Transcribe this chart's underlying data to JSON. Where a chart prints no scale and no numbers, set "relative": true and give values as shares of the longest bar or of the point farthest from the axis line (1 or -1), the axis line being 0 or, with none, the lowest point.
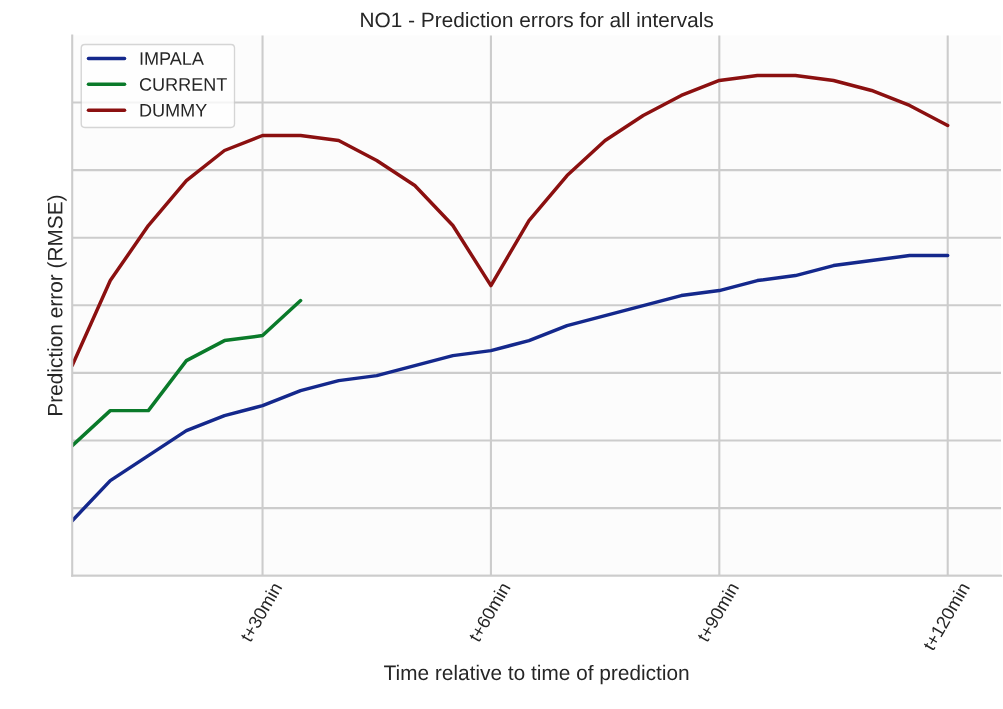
{
  "chart_data": {
    "type": "line",
    "title": "NO1 - Prediction errors for all intervals",
    "xlabel": "Time relative to time of prediction",
    "ylabel": "Prediction error (RMSE)",
    "relative": true,
    "categories": [
      null,
      null,
      null,
      null,
      null,
      "t+30min",
      null,
      null,
      null,
      null,
      null,
      "t+60min",
      null,
      null,
      null,
      null,
      null,
      "t+90min",
      null,
      null,
      null,
      null,
      null,
      "t+120min"
    ],
    "series": [
      {
        "name": "IMPALA",
        "color": "#14288c",
        "values": [
          0.11,
          0.19,
          0.24,
          0.29,
          0.32,
          0.34,
          0.37,
          0.39,
          0.4,
          0.42,
          0.44,
          0.45,
          0.47,
          0.5,
          0.52,
          0.54,
          0.56,
          0.57,
          0.59,
          0.6,
          0.62,
          0.63,
          0.64,
          0.64
        ]
      },
      {
        "name": "CURRENT",
        "color": "#0a7a2a",
        "values": [
          0.26,
          0.33,
          0.33,
          0.43,
          0.47,
          0.48,
          0.55,
          null,
          null,
          null,
          null,
          null,
          null,
          null,
          null,
          null,
          null,
          null,
          null,
          null,
          null,
          null,
          null,
          null
        ]
      },
      {
        "name": "DUMMY",
        "color": "#8b1010",
        "values": [
          0.42,
          0.59,
          0.7,
          0.79,
          0.85,
          0.88,
          0.88,
          0.87,
          0.83,
          0.78,
          0.7,
          0.58,
          0.71,
          0.8,
          0.87,
          0.92,
          0.96,
          0.99,
          1.0,
          1.0,
          0.99,
          0.97,
          0.94,
          0.9
        ]
      }
    ],
    "grid": true,
    "legend": "top left",
    "marker": "none",
    "line_style": "solid"
  }
}
